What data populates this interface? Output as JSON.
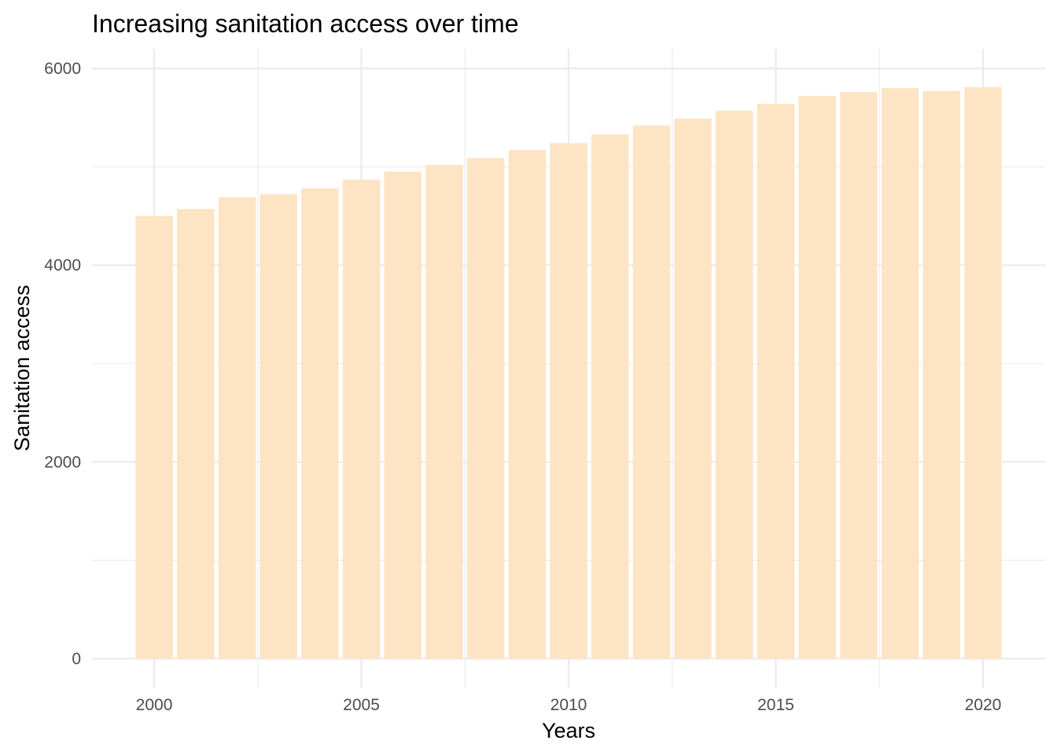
{
  "chart_data": {
    "type": "bar",
    "title": "Increasing sanitation access over time",
    "xlabel": "Years",
    "ylabel": "Sanitation access",
    "categories": [
      2000,
      2001,
      2002,
      2003,
      2004,
      2005,
      2006,
      2007,
      2008,
      2009,
      2010,
      2011,
      2012,
      2013,
      2014,
      2015,
      2016,
      2017,
      2018,
      2019,
      2020
    ],
    "values": [
      4500,
      4570,
      4690,
      4720,
      4780,
      4870,
      4950,
      5020,
      5090,
      5170,
      5240,
      5330,
      5420,
      5490,
      5570,
      5640,
      5720,
      5760,
      5800,
      5770,
      5810
    ],
    "xlim": [
      1998.5,
      2021.5
    ],
    "ylim": [
      -300,
      6200
    ],
    "x_ticks": [
      2000,
      2005,
      2010,
      2015,
      2020
    ],
    "x_tick_labels": [
      "2000",
      "2005",
      "2010",
      "2015",
      "2020"
    ],
    "y_ticks": [
      0,
      2000,
      4000,
      6000
    ],
    "y_tick_labels": [
      "0",
      "2000",
      "4000",
      "6000"
    ],
    "grid": true,
    "legend": "none",
    "bar_color": "#fde4c4",
    "grid_color": "#ebebeb"
  }
}
